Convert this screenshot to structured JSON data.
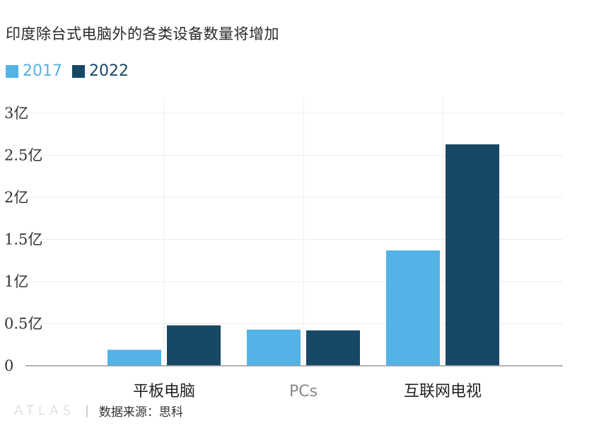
{
  "title": "印度除台式电脑外的各类设备数量将增加",
  "chart_data": {
    "type": "bar",
    "categories": [
      "平板电脑",
      "PCs",
      "互联网电视"
    ],
    "series": [
      {
        "name": "2017",
        "values": [
          0.19,
          0.43,
          1.37
        ],
        "color": "#53b2e6"
      },
      {
        "name": "2022",
        "values": [
          0.48,
          0.42,
          2.63
        ],
        "color": "#174866"
      }
    ],
    "ylim": [
      0,
      3
    ],
    "yticks": [
      0,
      0.5,
      1,
      1.5,
      2,
      2.5,
      3
    ],
    "ytick_labels": [
      "0",
      "0.5亿",
      "1亿",
      "1.5亿",
      "2亿",
      "2.5亿",
      "3亿"
    ],
    "grid": true,
    "legend_position": "top-left"
  },
  "footer": {
    "brand": "ATLAS",
    "source": "数据来源：思科"
  }
}
